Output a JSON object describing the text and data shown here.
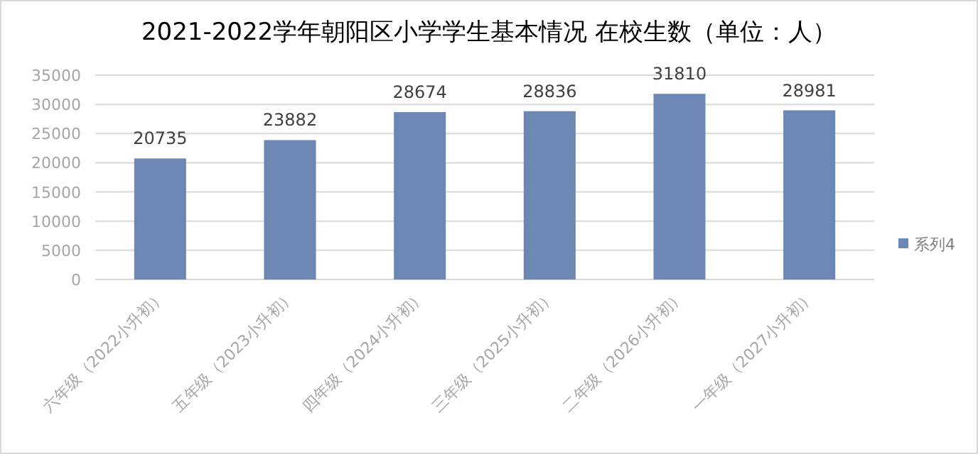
{
  "chart_data": {
    "type": "bar",
    "title": "2021-2022学年朝阳区小学学生基本情况 在校生数（单位：人）",
    "categories": [
      "六年级（2022小升初）",
      "五年级（2023小升初）",
      "四年级（2024小升初）",
      "三年级（2025小升初）",
      "二年级（2026小升初）",
      "一年级（2027小升初）"
    ],
    "series": [
      {
        "name": "系列4",
        "color": "#6d87b4",
        "values": [
          20735,
          23882,
          28674,
          28836,
          31810,
          28981
        ]
      }
    ],
    "ylim": [
      0,
      35000
    ],
    "yticks": [
      0,
      5000,
      10000,
      15000,
      20000,
      25000,
      30000,
      35000
    ],
    "grid": "y",
    "legend": "right",
    "data_labels": true
  }
}
